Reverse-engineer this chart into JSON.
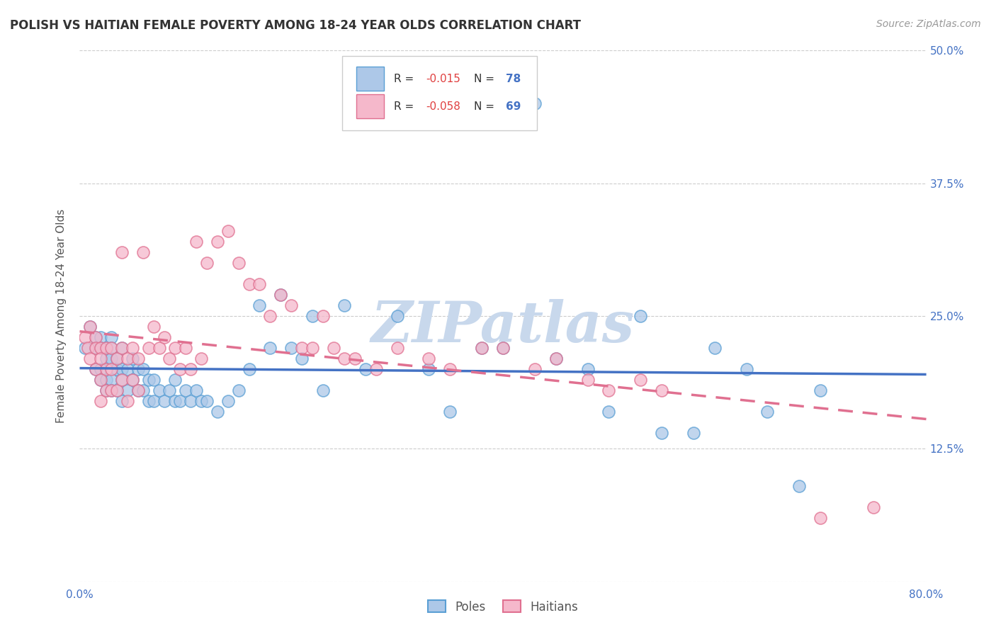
{
  "title": "POLISH VS HAITIAN FEMALE POVERTY AMONG 18-24 YEAR OLDS CORRELATION CHART",
  "source": "Source: ZipAtlas.com",
  "ylabel": "Female Poverty Among 18-24 Year Olds",
  "xlim": [
    0.0,
    0.8
  ],
  "ylim": [
    0.0,
    0.5
  ],
  "ytick_positions": [
    0.0,
    0.125,
    0.25,
    0.375,
    0.5
  ],
  "ytick_labels_right": [
    "",
    "12.5%",
    "25.0%",
    "37.5%",
    "50.0%"
  ],
  "poles_color": "#adc8e8",
  "poles_edge_color": "#5a9fd4",
  "haitians_color": "#f5b8cb",
  "haitians_edge_color": "#e07090",
  "regression_poles_color": "#4472c4",
  "regression_haitians_color": "#e07090",
  "watermark": "ZIPatlas",
  "watermark_color": "#c8d8ec",
  "poles_x": [
    0.005,
    0.01,
    0.015,
    0.015,
    0.015,
    0.02,
    0.02,
    0.02,
    0.02,
    0.025,
    0.025,
    0.025,
    0.025,
    0.03,
    0.03,
    0.03,
    0.03,
    0.03,
    0.035,
    0.035,
    0.035,
    0.04,
    0.04,
    0.04,
    0.04,
    0.045,
    0.045,
    0.05,
    0.05,
    0.055,
    0.055,
    0.06,
    0.06,
    0.065,
    0.065,
    0.07,
    0.07,
    0.075,
    0.08,
    0.085,
    0.09,
    0.09,
    0.095,
    0.1,
    0.105,
    0.11,
    0.115,
    0.12,
    0.13,
    0.14,
    0.15,
    0.16,
    0.17,
    0.18,
    0.19,
    0.2,
    0.21,
    0.22,
    0.23,
    0.25,
    0.27,
    0.3,
    0.33,
    0.35,
    0.38,
    0.4,
    0.43,
    0.45,
    0.48,
    0.5,
    0.53,
    0.55,
    0.58,
    0.6,
    0.63,
    0.65,
    0.68,
    0.7
  ],
  "poles_y": [
    0.22,
    0.24,
    0.23,
    0.22,
    0.2,
    0.23,
    0.22,
    0.2,
    0.19,
    0.22,
    0.21,
    0.19,
    0.18,
    0.23,
    0.22,
    0.21,
    0.19,
    0.18,
    0.21,
    0.2,
    0.18,
    0.22,
    0.2,
    0.19,
    0.17,
    0.2,
    0.18,
    0.21,
    0.19,
    0.2,
    0.18,
    0.2,
    0.18,
    0.19,
    0.17,
    0.19,
    0.17,
    0.18,
    0.17,
    0.18,
    0.19,
    0.17,
    0.17,
    0.18,
    0.17,
    0.18,
    0.17,
    0.17,
    0.16,
    0.17,
    0.18,
    0.2,
    0.26,
    0.22,
    0.27,
    0.22,
    0.21,
    0.25,
    0.18,
    0.26,
    0.2,
    0.25,
    0.2,
    0.16,
    0.22,
    0.22,
    0.45,
    0.21,
    0.2,
    0.16,
    0.25,
    0.14,
    0.14,
    0.22,
    0.2,
    0.16,
    0.09,
    0.18
  ],
  "haitians_x": [
    0.005,
    0.008,
    0.01,
    0.01,
    0.015,
    0.015,
    0.015,
    0.02,
    0.02,
    0.02,
    0.02,
    0.025,
    0.025,
    0.025,
    0.03,
    0.03,
    0.03,
    0.035,
    0.035,
    0.04,
    0.04,
    0.04,
    0.045,
    0.045,
    0.05,
    0.05,
    0.055,
    0.055,
    0.06,
    0.065,
    0.07,
    0.075,
    0.08,
    0.085,
    0.09,
    0.095,
    0.1,
    0.105,
    0.11,
    0.115,
    0.12,
    0.13,
    0.14,
    0.15,
    0.16,
    0.17,
    0.18,
    0.19,
    0.2,
    0.21,
    0.22,
    0.23,
    0.24,
    0.25,
    0.26,
    0.28,
    0.3,
    0.33,
    0.35,
    0.38,
    0.4,
    0.43,
    0.45,
    0.48,
    0.5,
    0.53,
    0.55,
    0.7,
    0.75
  ],
  "haitians_y": [
    0.23,
    0.22,
    0.24,
    0.21,
    0.23,
    0.22,
    0.2,
    0.22,
    0.21,
    0.19,
    0.17,
    0.22,
    0.2,
    0.18,
    0.22,
    0.2,
    0.18,
    0.21,
    0.18,
    0.31,
    0.22,
    0.19,
    0.21,
    0.17,
    0.22,
    0.19,
    0.21,
    0.18,
    0.31,
    0.22,
    0.24,
    0.22,
    0.23,
    0.21,
    0.22,
    0.2,
    0.22,
    0.2,
    0.32,
    0.21,
    0.3,
    0.32,
    0.33,
    0.3,
    0.28,
    0.28,
    0.25,
    0.27,
    0.26,
    0.22,
    0.22,
    0.25,
    0.22,
    0.21,
    0.21,
    0.2,
    0.22,
    0.21,
    0.2,
    0.22,
    0.22,
    0.2,
    0.21,
    0.19,
    0.18,
    0.19,
    0.18,
    0.06,
    0.07
  ]
}
